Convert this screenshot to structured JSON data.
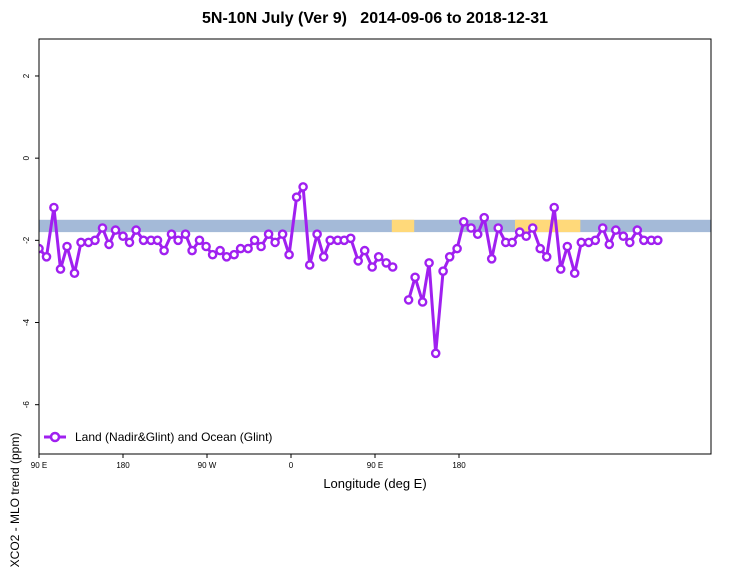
{
  "chart_data": {
    "type": "line",
    "title": "5N-10N July (Ver 9)   2014-09-06 to 2018-12-31",
    "xlabel": "Longitude (deg E)",
    "ylabel": "XCO2 - MLO trend (ppm)",
    "xlim": [
      90,
      450
    ],
    "ylim": [
      -7.2,
      2.9
    ],
    "x_ticks": [
      {
        "value": 90,
        "label": "90 E"
      },
      {
        "value": 180,
        "label": "180"
      },
      {
        "value": 270,
        "label": "90 W"
      },
      {
        "value": 360,
        "label": "0"
      },
      {
        "value": 450,
        "label": "90 E"
      },
      {
        "value": 540,
        "label": "180"
      }
    ],
    "y_ticks": [
      {
        "value": 2,
        "label": "2"
      },
      {
        "value": 0,
        "label": "0"
      },
      {
        "value": -2,
        "label": "-2"
      },
      {
        "value": -4,
        "label": "-4"
      },
      {
        "value": -6,
        "label": "-6"
      }
    ],
    "grid": false,
    "legend_position": "bottom-left",
    "band": {
      "y_top": -1.5,
      "y_bottom": -1.8,
      "color": "#a4bad8",
      "land_color": "#ffd97a"
    },
    "land_segments": [
      [
        279,
        291
      ],
      [
        345,
        380
      ],
      [
        472,
        476
      ],
      [
        528,
        532
      ]
    ],
    "series": [
      {
        "name": "Land (Nadir&Glint) and Ocean (Glint)",
        "color": "#a020f0",
        "segments": [
          [
            [
              90,
              -2.2
            ],
            [
              94,
              -2.4
            ],
            [
              98,
              -1.2
            ],
            [
              101.5,
              -2.7
            ],
            [
              105,
              -2.15
            ],
            [
              109,
              -2.8
            ],
            [
              112.5,
              -2.05
            ],
            [
              116.5,
              -2.05
            ],
            [
              120,
              -2.0
            ],
            [
              124,
              -1.7
            ],
            [
              127.5,
              -2.1
            ],
            [
              131,
              -1.75
            ],
            [
              135,
              -1.9
            ],
            [
              138.5,
              -2.05
            ],
            [
              142,
              -1.75
            ],
            [
              146,
              -2.0
            ],
            [
              150,
              -2.0
            ],
            [
              153.5,
              -2.0
            ],
            [
              157,
              -2.25
            ],
            [
              161,
              -1.85
            ],
            [
              164.5,
              -2.0
            ],
            [
              168.5,
              -1.85
            ],
            [
              172,
              -2.25
            ],
            [
              176,
              -2.0
            ],
            [
              179.5,
              -2.15
            ],
            [
              183,
              -2.35
            ],
            [
              187,
              -2.25
            ],
            [
              190.5,
              -2.4
            ],
            [
              194.5,
              -2.35
            ],
            [
              198,
              -2.2
            ],
            [
              202,
              -2.2
            ],
            [
              205.5,
              -2.0
            ],
            [
              209,
              -2.15
            ],
            [
              213,
              -1.85
            ],
            [
              216.5,
              -2.05
            ],
            [
              220.5,
              -1.85
            ],
            [
              224,
              -2.35
            ],
            [
              228,
              -0.95
            ],
            [
              231.5,
              -0.7
            ],
            [
              235,
              -2.6
            ],
            [
              239,
              -1.85
            ],
            [
              242.5,
              -2.4
            ],
            [
              246,
              -2.0
            ],
            [
              250,
              -2.0
            ],
            [
              253.5,
              -2.0
            ],
            [
              257,
              -1.95
            ],
            [
              261,
              -2.5
            ],
            [
              264.5,
              -2.25
            ],
            [
              268.5,
              -2.65
            ],
            [
              272,
              -2.4
            ],
            [
              276,
              -2.55
            ],
            [
              279.5,
              -2.65
            ]
          ],
          [
            [
              288,
              -3.45
            ],
            [
              291.5,
              -2.9
            ],
            [
              295.5,
              -3.5
            ],
            [
              299,
              -2.55
            ],
            [
              302.5,
              -4.75
            ],
            [
              306.5,
              -2.75
            ],
            [
              310,
              -2.4
            ],
            [
              314,
              -2.2
            ],
            [
              317.5,
              -1.55
            ],
            [
              321.5,
              -1.7
            ],
            [
              325,
              -1.85
            ],
            [
              328.5,
              -1.45
            ],
            [
              332.5,
              -2.45
            ],
            [
              336,
              -1.7
            ],
            [
              340,
              -2.05
            ],
            [
              343.5,
              -2.05
            ],
            [
              347.5,
              -1.8
            ],
            [
              351,
              -1.9
            ],
            [
              354.5,
              -1.7
            ],
            [
              358.5,
              -2.2
            ],
            [
              362,
              -2.4
            ],
            [
              366,
              -1.2
            ],
            [
              369.5,
              -2.7
            ],
            [
              373,
              -2.15
            ],
            [
              377,
              -2.8
            ],
            [
              380.5,
              -2.05
            ],
            [
              384.5,
              -2.05
            ],
            [
              388,
              -2.0
            ],
            [
              392,
              -1.7
            ],
            [
              395.5,
              -2.1
            ],
            [
              399,
              -1.75
            ],
            [
              403,
              -1.9
            ],
            [
              406.5,
              -2.05
            ],
            [
              410.5,
              -1.75
            ],
            [
              414,
              -2.0
            ],
            [
              418,
              -2.0
            ],
            [
              421.5,
              -2.0
            ]
          ]
        ]
      }
    ]
  }
}
